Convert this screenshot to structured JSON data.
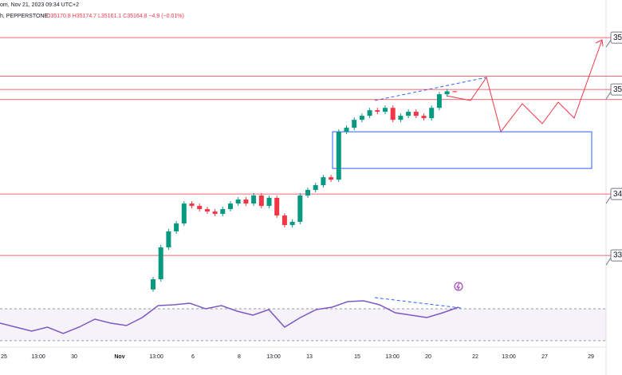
{
  "chart_data": {
    "type": "candlestick",
    "header": "om, Nov 21, 2023 09:34 UTC+2",
    "source": "h, PEPPERSTONE",
    "ohlc_text": "O35170.8 H35174.7 L35161.1 C35164.8 −4.9 (−0.01%)",
    "up_color": "#089981",
    "down_color": "#f23645",
    "ylim": [
      33040,
      36000
    ],
    "open": [
      33100,
      33207,
      33540,
      33707,
      33790,
      33998,
      33973,
      33940,
      33915,
      33890,
      33940,
      33998,
      34040,
      33998,
      34082,
      33973,
      34057,
      33873,
      33773,
      33807,
      34082,
      34140,
      34190,
      34273,
      34248,
      34748,
      34790,
      34873,
      34915,
      34973,
      34957,
      34998,
      34873,
      34915,
      34957,
      34915,
      34890,
      34998,
      35140,
      35171
    ],
    "high": [
      33232,
      33565,
      33732,
      33815,
      34023,
      34023,
      33998,
      33965,
      33940,
      33965,
      34023,
      34065,
      34065,
      34107,
      34107,
      34082,
      34082,
      33898,
      33832,
      34107,
      34165,
      34215,
      34298,
      34298,
      34773,
      34815,
      34898,
      34940,
      34998,
      34998,
      35023,
      35023,
      34940,
      34982,
      34982,
      34940,
      35023,
      35165,
      35196,
      35175
    ],
    "low": [
      33075,
      33182,
      33515,
      33682,
      33765,
      33948,
      33915,
      33890,
      33865,
      33865,
      33915,
      33973,
      33973,
      33973,
      33948,
      33948,
      33848,
      33748,
      33748,
      33782,
      34057,
      34115,
      34165,
      34223,
      34223,
      34723,
      34765,
      34848,
      34890,
      34932,
      34932,
      34848,
      34848,
      34890,
      34890,
      34865,
      34865,
      34973,
      35115,
      35161
    ],
    "close": [
      33207,
      33540,
      33707,
      33790,
      33998,
      33973,
      33940,
      33915,
      33890,
      33940,
      33998,
      34040,
      33998,
      34082,
      33973,
      34057,
      33873,
      33773,
      33807,
      34082,
      34140,
      34190,
      34273,
      34248,
      34748,
      34790,
      34873,
      34915,
      34973,
      34957,
      34998,
      34873,
      34915,
      34957,
      34915,
      34890,
      34998,
      35140,
      35171,
      35165
    ],
    "levels": [
      {
        "value": 35732,
        "label": "35"
      },
      35330,
      {
        "value": 35190,
        "label": "35"
      },
      35085,
      {
        "value": 34098,
        "label": "34"
      },
      {
        "value": 33456,
        "label": "33"
      }
    ],
    "level_color": "#f23645",
    "zone": {
      "top": 34748,
      "bottom": 34365,
      "color": "#2962ff"
    },
    "rsi": {
      "color": "#7e57c2",
      "ylim": [
        20,
        80
      ],
      "levels": [
        70,
        30
      ],
      "values": [
        52,
        47,
        42,
        47,
        39,
        47,
        57,
        52,
        49,
        59,
        74,
        75,
        77,
        70,
        74,
        67,
        62,
        69,
        47,
        59,
        69,
        72,
        79,
        80,
        75,
        65,
        62,
        59,
        65,
        72
      ]
    },
    "xlabels": [
      "25",
      "13:00",
      "30",
      "Nov",
      "13:00",
      "6",
      "8",
      "13:00",
      "13",
      "15",
      "13:00",
      "20",
      "22",
      "13:00",
      "27",
      "29"
    ]
  }
}
